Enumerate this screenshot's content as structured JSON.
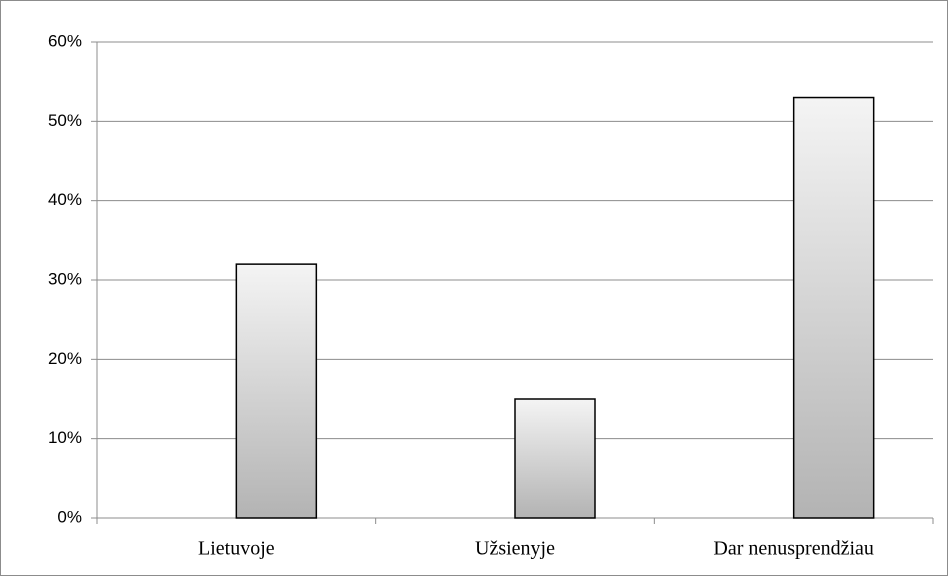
{
  "chart_data": {
    "type": "bar",
    "categories": [
      "Lietuvoje",
      "Užsienyje",
      "Dar nenusprendžiau"
    ],
    "values": [
      32,
      15,
      53
    ],
    "ylim": [
      0,
      60
    ],
    "yticks": [
      {
        "value": 0,
        "label": "0%"
      },
      {
        "value": 10,
        "label": "10%"
      },
      {
        "value": 20,
        "label": "20%"
      },
      {
        "value": 30,
        "label": "30%"
      },
      {
        "value": 40,
        "label": "40%"
      },
      {
        "value": 50,
        "label": "50%"
      },
      {
        "value": 60,
        "label": "60%"
      }
    ],
    "grid": true
  }
}
